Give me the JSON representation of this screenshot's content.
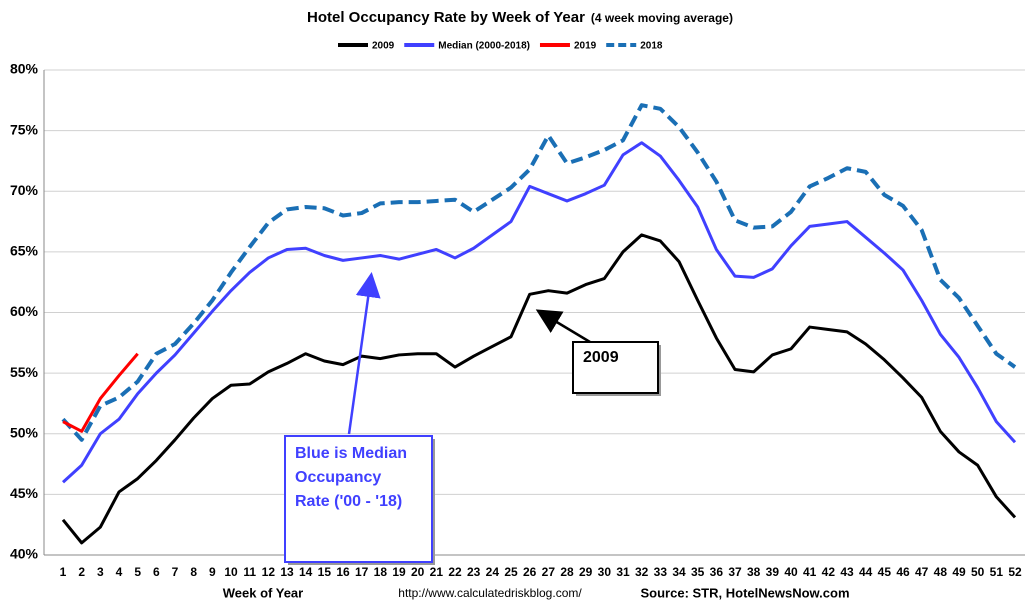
{
  "chart_data": {
    "type": "line",
    "title": "Hotel Occupancy Rate by  Week of Year",
    "subtitle": "(4 week moving average)",
    "x_label": "Week of Year",
    "url": "http://www.calculatedriskblog.com/",
    "source": "Source: STR, HotelNewsNow.com",
    "categories": [
      "1",
      "2",
      "3",
      "4",
      "5",
      "6",
      "7",
      "8",
      "9",
      "10",
      "11",
      "12",
      "13",
      "14",
      "15",
      "16",
      "17",
      "18",
      "19",
      "20",
      "21",
      "22",
      "23",
      "24",
      "25",
      "26",
      "27",
      "28",
      "29",
      "30",
      "31",
      "32",
      "33",
      "34",
      "35",
      "36",
      "37",
      "38",
      "39",
      "40",
      "41",
      "42",
      "43",
      "44",
      "45",
      "46",
      "47",
      "48",
      "49",
      "50",
      "51",
      "52"
    ],
    "ylim": [
      40,
      80
    ],
    "yticks": [
      {
        "value": 40,
        "label": "40%"
      },
      {
        "value": 45,
        "label": "45%"
      },
      {
        "value": 50,
        "label": "50%"
      },
      {
        "value": 55,
        "label": "55%"
      },
      {
        "value": 60,
        "label": "60%"
      },
      {
        "value": 65,
        "label": "65%"
      },
      {
        "value": 70,
        "label": "70%"
      },
      {
        "value": 75,
        "label": "75%"
      },
      {
        "value": 80,
        "label": "80%"
      }
    ],
    "grid": true,
    "legend": "top",
    "series": [
      {
        "name": "2009",
        "color": "#000000",
        "dashed": false,
        "values": [
          42.9,
          41.0,
          42.3,
          45.2,
          46.3,
          47.8,
          49.5,
          51.3,
          52.9,
          54.0,
          54.1,
          55.1,
          55.8,
          56.6,
          56.0,
          55.7,
          56.4,
          56.2,
          56.5,
          56.6,
          56.6,
          55.5,
          56.4,
          57.2,
          58.0,
          61.5,
          61.8,
          61.6,
          62.3,
          62.8,
          65.0,
          66.4,
          65.9,
          64.2,
          61.0,
          57.9,
          55.3,
          55.1,
          56.5,
          57.0,
          58.8,
          58.6,
          58.4,
          57.4,
          56.1,
          54.6,
          53.0,
          50.2,
          48.5,
          47.4,
          44.8,
          43.1
        ]
      },
      {
        "name": "Median (2000-2018)",
        "color": "#4040ff",
        "dashed": false,
        "values": [
          46.0,
          47.4,
          50.0,
          51.2,
          53.3,
          55.0,
          56.5,
          58.3,
          60.1,
          61.8,
          63.3,
          64.5,
          65.2,
          65.3,
          64.7,
          64.3,
          64.5,
          64.7,
          64.4,
          64.8,
          65.2,
          64.5,
          65.3,
          66.4,
          67.5,
          70.4,
          69.8,
          69.2,
          69.8,
          70.5,
          73.0,
          74.0,
          72.9,
          70.9,
          68.7,
          65.2,
          63.0,
          62.9,
          63.6,
          65.5,
          67.1,
          67.3,
          67.5,
          66.2,
          64.9,
          63.5,
          61.0,
          58.2,
          56.3,
          53.8,
          51.0,
          49.3
        ]
      },
      {
        "name": "2019",
        "color": "#ff0000",
        "dashed": false,
        "values": [
          51.0,
          50.2,
          52.9,
          54.8,
          56.6,
          null,
          null,
          null,
          null,
          null,
          null,
          null,
          null,
          null,
          null,
          null,
          null,
          null,
          null,
          null,
          null,
          null,
          null,
          null,
          null,
          null,
          null,
          null,
          null,
          null,
          null,
          null,
          null,
          null,
          null,
          null,
          null,
          null,
          null,
          null,
          null,
          null,
          null,
          null,
          null,
          null,
          null,
          null,
          null,
          null,
          null,
          null
        ]
      },
      {
        "name": "2018",
        "color": "#1a6fb5",
        "dashed": true,
        "values": [
          51.2,
          49.5,
          52.3,
          53.0,
          54.3,
          56.6,
          57.4,
          59.1,
          61.0,
          63.3,
          65.4,
          67.4,
          68.5,
          68.7,
          68.6,
          68.0,
          68.2,
          69.0,
          69.1,
          69.1,
          69.2,
          69.3,
          68.3,
          69.3,
          70.3,
          71.8,
          74.6,
          72.3,
          72.8,
          73.4,
          74.2,
          77.1,
          76.8,
          75.3,
          73.2,
          70.8,
          67.6,
          67.0,
          67.1,
          68.3,
          70.4,
          71.1,
          71.9,
          71.6,
          69.7,
          68.8,
          66.8,
          62.7,
          61.2,
          58.9,
          56.6,
          55.5
        ]
      }
    ],
    "annotations": [
      {
        "lines": [
          "2009"
        ],
        "color": "#000000"
      },
      {
        "lines": [
          "Blue is Median",
          "Occupancy",
          "Rate ('00 - '18)"
        ],
        "color": "#4040ff"
      }
    ]
  }
}
